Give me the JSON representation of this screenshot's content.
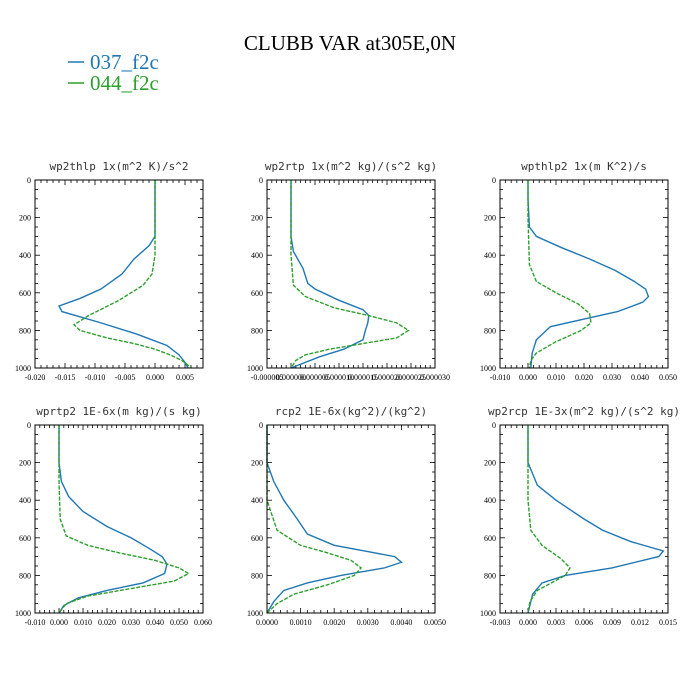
{
  "figure": {
    "title": "CLUBB VAR at305E,0N",
    "legend": [
      {
        "label": "037_f2c",
        "color": "#1f77b4"
      },
      {
        "label": "044_f2c",
        "color": "#2ca02c"
      }
    ]
  },
  "chart_data": [
    {
      "type": "line",
      "title": "wp2thlp  1x(m^2 K)/s^2",
      "xlim": [
        -0.02,
        0.008
      ],
      "ylim": [
        1000,
        0
      ],
      "xticks": [
        "-0.020",
        "-0.015",
        "-0.010",
        "-0.005",
        "0.000",
        "0.005"
      ],
      "xtick_values": [
        -0.02,
        -0.015,
        -0.01,
        -0.005,
        0,
        0.005
      ],
      "yticks": [
        "0",
        "200",
        "400",
        "600",
        "800",
        "1000"
      ],
      "ytick_values": [
        0,
        200,
        400,
        600,
        800,
        1000
      ],
      "series": [
        {
          "name": "037_f2c",
          "color": "#1f77b4",
          "dash": false,
          "x": [
            0.0,
            0.0,
            0.0,
            0.0,
            -0.001,
            -0.0035,
            -0.0055,
            -0.009,
            -0.0125,
            -0.016,
            -0.0155,
            -0.009,
            -0.003,
            0.002,
            0.004,
            0.005,
            0.0055
          ],
          "y": [
            0,
            100,
            200,
            300,
            350,
            420,
            500,
            580,
            630,
            670,
            700,
            760,
            820,
            880,
            930,
            970,
            1000
          ]
        },
        {
          "name": "044_f2c",
          "color": "#2ca02c",
          "dash": true,
          "x": [
            0.0,
            0.0,
            0.0,
            -0.0005,
            -0.002,
            -0.006,
            -0.011,
            -0.0135,
            -0.0125,
            -0.008,
            -0.0035,
            0.0,
            0.0025,
            0.0045,
            0.0055,
            0.006
          ],
          "y": [
            0,
            200,
            400,
            500,
            560,
            640,
            720,
            770,
            800,
            840,
            870,
            900,
            930,
            960,
            985,
            1000
          ]
        }
      ]
    },
    {
      "type": "line",
      "title": "wp2rtp  1x(m^2 kg)/(s^2 kg)",
      "xlim": [
        -5e-06,
        3e-05
      ],
      "ylim": [
        1000,
        0
      ],
      "xticks": [
        "-0.000005",
        "0.000000",
        "0.000005",
        "0.000010",
        "0.000015",
        "0.000020",
        "0.000025",
        "0.000030"
      ],
      "xtick_values": [
        -5e-06,
        0,
        5e-06,
        1e-05,
        1.5e-05,
        2e-05,
        2.5e-05,
        3e-05
      ],
      "yticks": [
        "0",
        "200",
        "400",
        "600",
        "800",
        "1000"
      ],
      "ytick_values": [
        0,
        200,
        400,
        600,
        800,
        1000
      ],
      "series": [
        {
          "name": "037_f2c",
          "color": "#1f77b4",
          "dash": false,
          "x": [
            0.0,
            0.0,
            0.0,
            5e-07,
            2.5e-06,
            3.5e-06,
            5e-06,
            1e-05,
            1.5e-05,
            1.62e-05,
            1.6e-05,
            1.55e-05,
            1.5e-05,
            1.1e-05,
            6e-06,
            2e-06,
            0.0
          ],
          "y": [
            0,
            100,
            300,
            380,
            470,
            550,
            580,
            640,
            690,
            720,
            760,
            800,
            850,
            900,
            940,
            980,
            1000
          ]
        },
        {
          "name": "044_f2c",
          "color": "#2ca02c",
          "dash": true,
          "x": [
            0.0,
            0.0,
            0.0,
            5e-07,
            3e-06,
            9e-06,
            1.6e-05,
            2.2e-05,
            2.45e-05,
            2.2e-05,
            1.5e-05,
            8e-06,
            3e-06,
            1e-06,
            0.0
          ],
          "y": [
            0,
            200,
            400,
            560,
            620,
            680,
            720,
            760,
            800,
            840,
            870,
            900,
            930,
            960,
            1000
          ]
        }
      ]
    },
    {
      "type": "line",
      "title": "wpthlp2  1x(m K^2)/s",
      "xlim": [
        -0.01,
        0.05
      ],
      "ylim": [
        1000,
        0
      ],
      "xticks": [
        "-0.010",
        "0.000",
        "0.010",
        "0.020",
        "0.030",
        "0.040",
        "0.050"
      ],
      "xtick_values": [
        -0.01,
        0,
        0.01,
        0.02,
        0.03,
        0.04,
        0.05
      ],
      "yticks": [
        "0",
        "200",
        "400",
        "600",
        "800",
        "1000"
      ],
      "ytick_values": [
        0,
        200,
        400,
        600,
        800,
        1000
      ],
      "series": [
        {
          "name": "037_f2c",
          "color": "#1f77b4",
          "dash": false,
          "x": [
            0.0,
            0.0,
            0.0005,
            0.003,
            0.012,
            0.022,
            0.031,
            0.038,
            0.042,
            0.043,
            0.041,
            0.032,
            0.02,
            0.008,
            0.003,
            0.0015,
            0.001
          ],
          "y": [
            0,
            100,
            250,
            300,
            360,
            420,
            480,
            540,
            580,
            620,
            650,
            700,
            740,
            780,
            850,
            920,
            1000
          ]
        },
        {
          "name": "044_f2c",
          "color": "#2ca02c",
          "dash": true,
          "x": [
            0.0,
            0.0,
            0.0005,
            0.003,
            0.01,
            0.018,
            0.022,
            0.0225,
            0.019,
            0.01,
            0.003,
            0.001,
            0.0005
          ],
          "y": [
            0,
            200,
            450,
            540,
            600,
            660,
            710,
            760,
            800,
            860,
            920,
            960,
            1000
          ]
        }
      ]
    },
    {
      "type": "line",
      "title": "wprtp2  1E-6x(m kg)/(s kg)",
      "xlim": [
        -0.01,
        0.06
      ],
      "ylim": [
        1000,
        0
      ],
      "xticks": [
        "-0.010",
        "0.000",
        "0.010",
        "0.020",
        "0.030",
        "0.040",
        "0.050",
        "0.060"
      ],
      "xtick_values": [
        -0.01,
        0,
        0.01,
        0.02,
        0.03,
        0.04,
        0.05,
        0.06
      ],
      "yticks": [
        "0",
        "200",
        "400",
        "600",
        "800",
        "1000"
      ],
      "ytick_values": [
        0,
        200,
        400,
        600,
        800,
        1000
      ],
      "series": [
        {
          "name": "037_f2c",
          "color": "#1f77b4",
          "dash": false,
          "x": [
            0.0,
            0.0,
            0.001,
            0.004,
            0.01,
            0.02,
            0.03,
            0.038,
            0.043,
            0.045,
            0.044,
            0.035,
            0.02,
            0.008,
            0.002,
            0.0
          ],
          "y": [
            0,
            200,
            300,
            380,
            460,
            540,
            600,
            660,
            700,
            740,
            790,
            840,
            880,
            920,
            960,
            1000
          ]
        },
        {
          "name": "044_f2c",
          "color": "#2ca02c",
          "dash": true,
          "x": [
            0.0,
            0.0,
            0.0005,
            0.003,
            0.012,
            0.025,
            0.04,
            0.05,
            0.054,
            0.048,
            0.03,
            0.012,
            0.003,
            0.0
          ],
          "y": [
            0,
            300,
            500,
            590,
            640,
            680,
            720,
            760,
            790,
            830,
            870,
            910,
            950,
            1000
          ]
        }
      ]
    },
    {
      "type": "line",
      "title": "rcp2  1E-6x(kg^2)/(kg^2)",
      "xlim": [
        0,
        0.005
      ],
      "ylim": [
        1000,
        0
      ],
      "xticks": [
        "0.0000",
        "0.0010",
        "0.0020",
        "0.0030",
        "0.0040",
        "0.0050"
      ],
      "xtick_values": [
        0,
        0.001,
        0.002,
        0.003,
        0.004,
        0.005
      ],
      "yticks": [
        "0",
        "200",
        "400",
        "600",
        "800",
        "1000"
      ],
      "ytick_values": [
        0,
        200,
        400,
        600,
        800,
        1000
      ],
      "series": [
        {
          "name": "037_f2c",
          "color": "#1f77b4",
          "dash": false,
          "x": [
            0.0,
            0.0,
            0.0002,
            0.0005,
            0.0009,
            0.0012,
            0.002,
            0.0032,
            0.0038,
            0.004,
            0.0035,
            0.0022,
            0.0012,
            0.0005,
            0.0002,
            0.0
          ],
          "y": [
            0,
            200,
            300,
            400,
            500,
            580,
            640,
            680,
            700,
            730,
            760,
            800,
            840,
            880,
            940,
            1000
          ]
        },
        {
          "name": "044_f2c",
          "color": "#2ca02c",
          "dash": true,
          "x": [
            0.0,
            0.0,
            0.0003,
            0.001,
            0.0018,
            0.0025,
            0.0028,
            0.0026,
            0.0018,
            0.0008,
            0.0003,
            0.0
          ],
          "y": [
            0,
            400,
            560,
            640,
            680,
            720,
            760,
            800,
            850,
            900,
            950,
            1000
          ]
        }
      ]
    },
    {
      "type": "line",
      "title": "wp2rcp  1E-3x(m^2 kg)/(s^2 kg)",
      "xlim": [
        -0.003,
        0.015
      ],
      "ylim": [
        1000,
        0
      ],
      "xticks": [
        "-0.003",
        "0.000",
        "0.003",
        "0.006",
        "0.009",
        "0.012",
        "0.015"
      ],
      "xtick_values": [
        -0.003,
        0,
        0.003,
        0.006,
        0.009,
        0.012,
        0.015
      ],
      "yticks": [
        "0",
        "200",
        "400",
        "600",
        "800",
        "1000"
      ],
      "ytick_values": [
        0,
        200,
        400,
        600,
        800,
        1000
      ],
      "series": [
        {
          "name": "037_f2c",
          "color": "#1f77b4",
          "dash": false,
          "x": [
            0.0,
            0.0,
            0.0005,
            0.001,
            0.003,
            0.006,
            0.008,
            0.011,
            0.0145,
            0.014,
            0.009,
            0.004,
            0.0015,
            0.0005,
            0.0
          ],
          "y": [
            0,
            200,
            260,
            320,
            400,
            500,
            560,
            620,
            670,
            700,
            760,
            800,
            840,
            900,
            1000
          ]
        },
        {
          "name": "044_f2c",
          "color": "#2ca02c",
          "dash": true,
          "x": [
            0.0,
            0.0,
            0.0003,
            0.0015,
            0.0035,
            0.0045,
            0.004,
            0.0025,
            0.001,
            0.0002,
            0.0
          ],
          "y": [
            0,
            400,
            560,
            640,
            710,
            760,
            800,
            840,
            880,
            940,
            1000
          ]
        }
      ]
    }
  ]
}
